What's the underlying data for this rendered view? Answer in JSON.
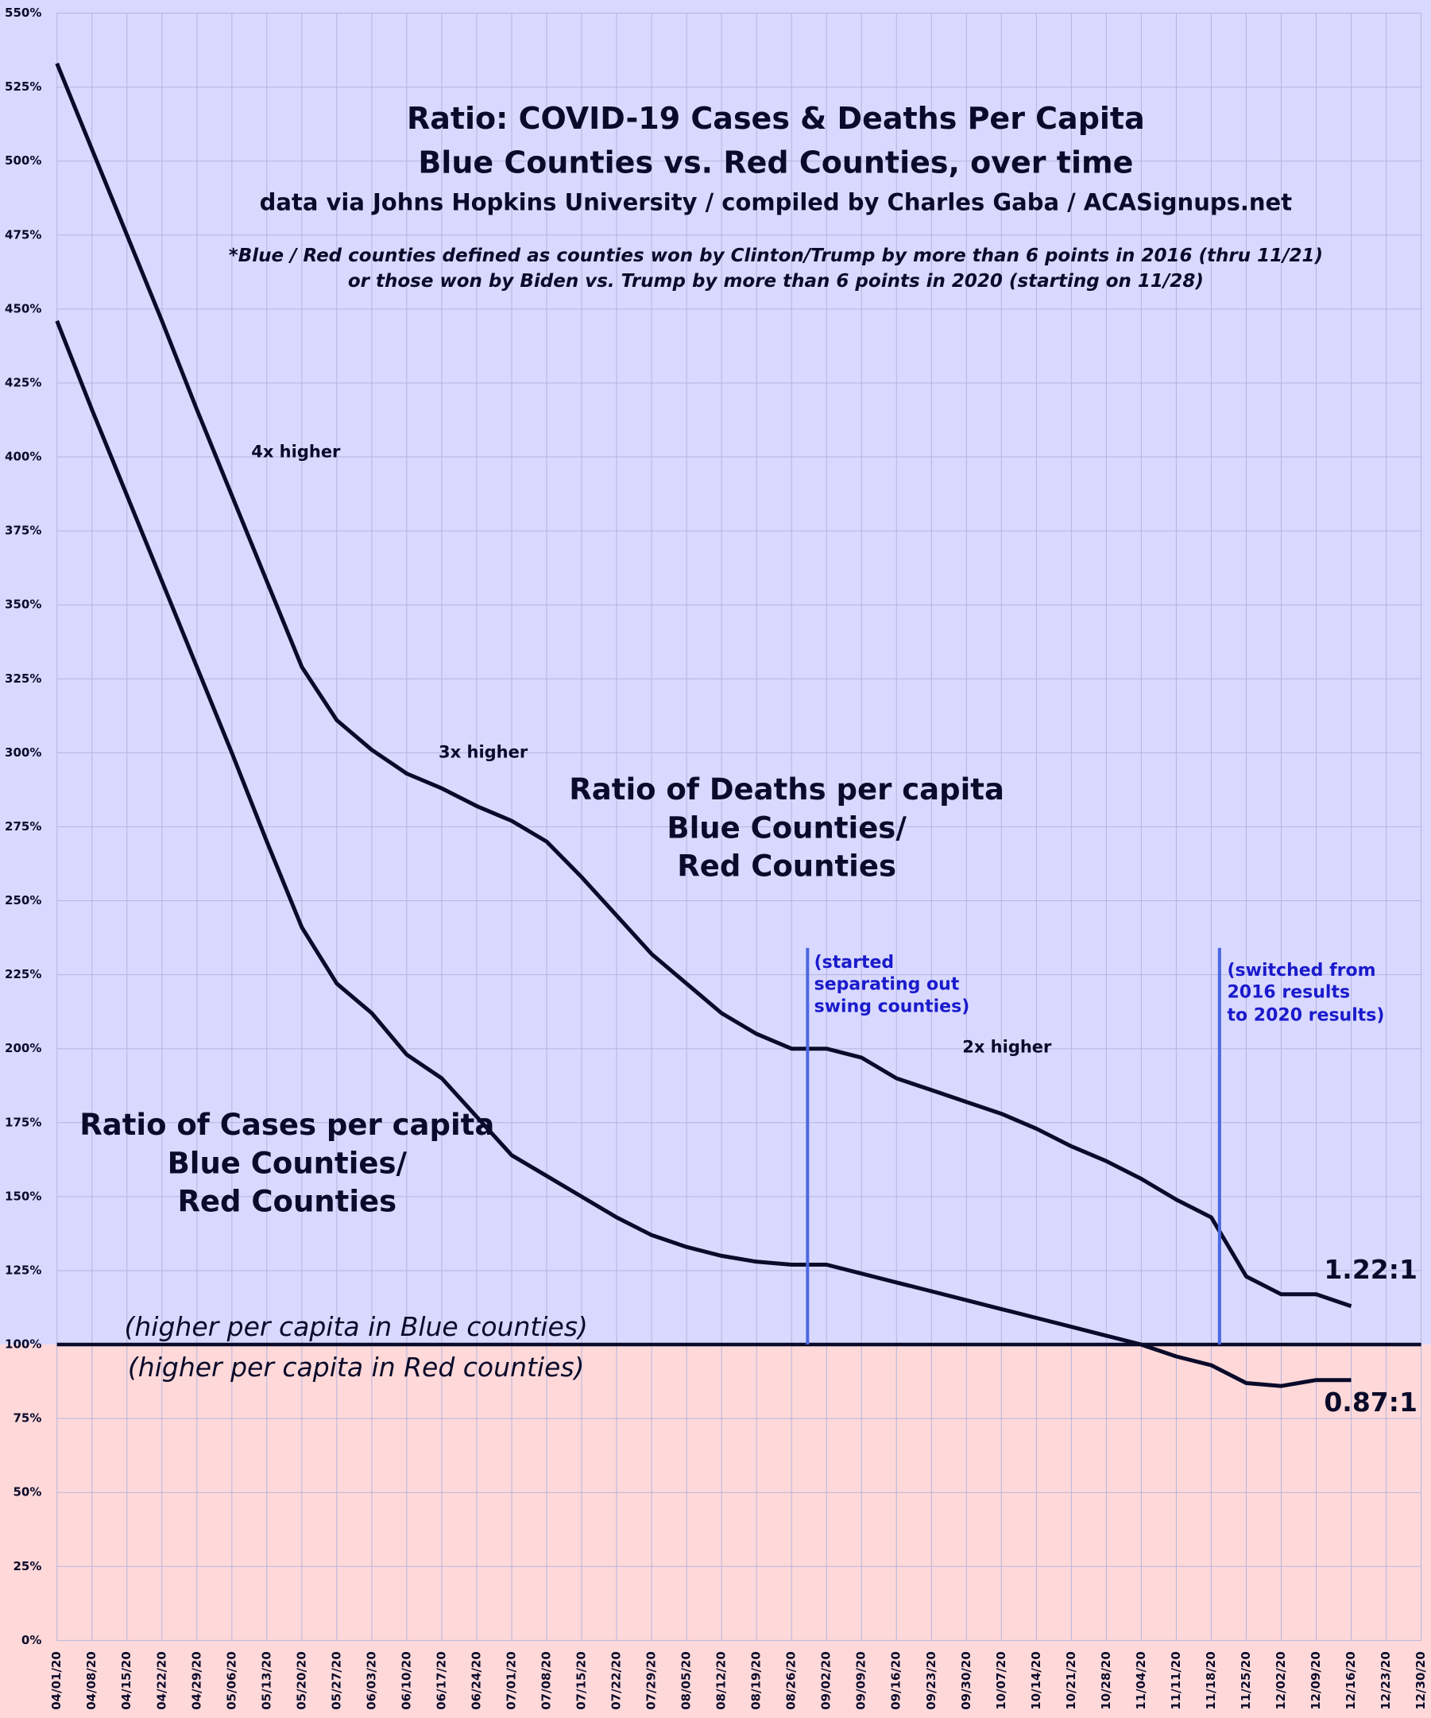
{
  "chart_data": {
    "type": "line",
    "title_lines": [
      "Ratio: COVID-19 Cases & Deaths Per Capita",
      "Blue Counties vs. Red Counties, over time"
    ],
    "subtitle": "data via Johns Hopkins University / compiled by Charles Gaba / ACASignups.net",
    "footnote_lines": [
      "*Blue / Red counties defined as counties won by Clinton/Trump by more than 6 points in 2016 (thru 11/21)",
      "or those won by Biden vs. Trump by more than 6 points in 2020 (starting on 11/28)"
    ],
    "categories": [
      "04/01/20",
      "04/08/20",
      "04/15/20",
      "04/22/20",
      "04/29/20",
      "05/06/20",
      "05/13/20",
      "05/20/20",
      "05/27/20",
      "06/03/20",
      "06/10/20",
      "06/17/20",
      "06/24/20",
      "07/01/20",
      "07/08/20",
      "07/15/20",
      "07/22/20",
      "07/29/20",
      "08/05/20",
      "08/12/20",
      "08/19/20",
      "08/26/20",
      "09/02/20",
      "09/09/20",
      "09/16/20",
      "09/23/20",
      "09/30/20",
      "10/07/20",
      "10/14/20",
      "10/21/20",
      "10/28/20",
      "11/04/20",
      "11/11/20",
      "11/18/20",
      "11/25/20",
      "12/02/20",
      "12/09/20",
      "12/16/20",
      "12/23/20",
      "12/30/20"
    ],
    "series": [
      {
        "label_lines": [
          "Ratio of Deaths per capita",
          "Blue Counties/",
          "Red Counties"
        ],
        "color": "#0a0a2a",
        "values": [
          533,
          504,
          475,
          446,
          416,
          387,
          358,
          329,
          311,
          301,
          293,
          288,
          282,
          277,
          270,
          258,
          245,
          232,
          222,
          212,
          205,
          200,
          200,
          197,
          190,
          186,
          182,
          178,
          173,
          167,
          162,
          156,
          149,
          143,
          123,
          117,
          117,
          113,
          null,
          null
        ]
      },
      {
        "label_lines": [
          "Ratio of Cases per capita",
          "Blue Counties/",
          "Red Counties"
        ],
        "color": "#0a0a2a",
        "values": [
          446,
          416,
          387,
          358,
          329,
          300,
          270,
          241,
          222,
          212,
          198,
          190,
          177,
          164,
          157,
          150,
          143,
          137,
          133,
          130,
          128,
          127,
          127,
          124,
          121,
          118,
          115,
          112,
          109,
          106,
          103,
          100,
          96,
          93,
          87,
          86,
          88,
          88,
          null,
          null
        ]
      }
    ],
    "ylim": [
      0,
      550
    ],
    "yticks": [
      {
        "value": 0,
        "label": "0%"
      },
      {
        "value": 25,
        "label": "25%"
      },
      {
        "value": 50,
        "label": "50%"
      },
      {
        "value": 75,
        "label": "75%"
      },
      {
        "value": 100,
        "label": "100%"
      },
      {
        "value": 125,
        "label": "125%"
      },
      {
        "value": 150,
        "label": "150%"
      },
      {
        "value": 175,
        "label": "175%"
      },
      {
        "value": 200,
        "label": "200%"
      },
      {
        "value": 225,
        "label": "225%"
      },
      {
        "value": 250,
        "label": "250%"
      },
      {
        "value": 275,
        "label": "275%"
      },
      {
        "value": 300,
        "label": "300%"
      },
      {
        "value": 325,
        "label": "325%"
      },
      {
        "value": 350,
        "label": "350%"
      },
      {
        "value": 375,
        "label": "375%"
      },
      {
        "value": 400,
        "label": "400%"
      },
      {
        "value": 425,
        "label": "425%"
      },
      {
        "value": 450,
        "label": "450%"
      },
      {
        "value": 475,
        "label": "475%"
      },
      {
        "value": 500,
        "label": "500%"
      },
      {
        "value": 525,
        "label": "525%"
      },
      {
        "value": 550,
        "label": "550%"
      }
    ],
    "grid": true,
    "reference_line": 100,
    "upper_color": "#d9d9ff",
    "lower_color": "#ffd9d9",
    "annotations": [
      {
        "text": "4x higher"
      },
      {
        "text": "3x higher"
      },
      {
        "text": "2x higher"
      },
      {
        "text": "1.22:1"
      },
      {
        "text": "0.87:1"
      },
      {
        "text": "(higher per capita in Blue counties)"
      },
      {
        "text": "(higher per capita in Red counties)"
      },
      {
        "lines": [
          "(started",
          "separating out",
          "swing counties)"
        ]
      },
      {
        "lines": [
          "(switched from",
          "2016 results",
          "to 2020 results)"
        ]
      }
    ]
  }
}
